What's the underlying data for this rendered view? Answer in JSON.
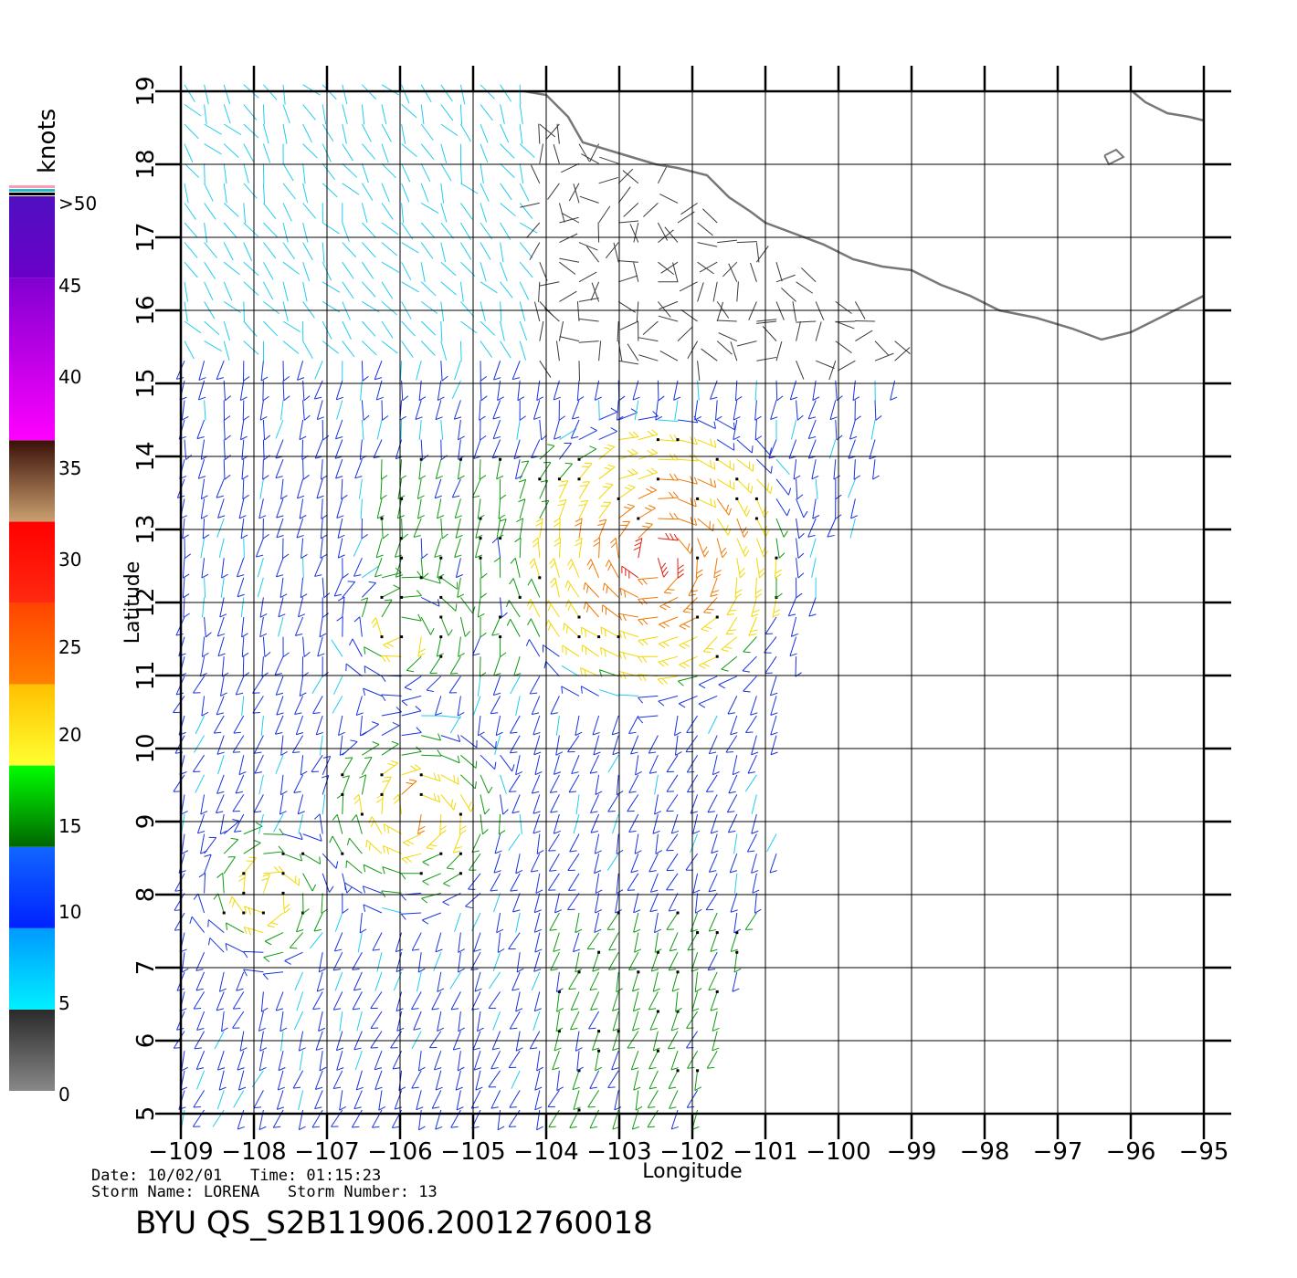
{
  "map": {
    "xaxis": {
      "label": "Longitude",
      "range": [
        -109,
        -95
      ],
      "ticks": [
        -109,
        -108,
        -107,
        -106,
        -105,
        -104,
        -103,
        -102,
        -101,
        -100,
        -99,
        -98,
        -97,
        -96,
        -95
      ],
      "tick_labels": [
        "−109",
        "−108",
        "−107",
        "−106",
        "−105",
        "−104",
        "−103",
        "−102",
        "−101",
        "−100",
        "−99",
        "−98",
        "−97",
        "−96",
        "−95"
      ]
    },
    "yaxis": {
      "label": "Latitude",
      "range": [
        5,
        19
      ],
      "ticks": [
        5,
        6,
        7,
        8,
        9,
        10,
        11,
        12,
        13,
        14,
        15,
        16,
        17,
        18,
        19
      ],
      "tick_labels": [
        "5",
        "6",
        "7",
        "8",
        "9",
        "10",
        "11",
        "12",
        "13",
        "14",
        "15",
        "16",
        "17",
        "18",
        "19"
      ]
    },
    "grid": true,
    "coastline_color": "#777777",
    "swath": {
      "lon_min": -109,
      "lat_min": 5,
      "lat_max": 19
    }
  },
  "legend": {
    "title": "knots",
    "labels": [
      ">50",
      "45",
      "40",
      "35",
      "30",
      "25",
      "20",
      "15",
      "10",
      "5",
      "0"
    ],
    "bins": [
      {
        "min": 0,
        "max": 5,
        "color": "#3a3a3a"
      },
      {
        "min": 5,
        "max": 10,
        "color": "#22ccee"
      },
      {
        "min": 10,
        "max": 15,
        "color": "#1a33dd"
      },
      {
        "min": 15,
        "max": 20,
        "color": "#119911"
      },
      {
        "min": 20,
        "max": 25,
        "color": "#f2d800"
      },
      {
        "min": 25,
        "max": 30,
        "color": "#f07800"
      },
      {
        "min": 30,
        "max": 35,
        "color": "#e02010"
      },
      {
        "min": 35,
        "max": 40,
        "color": "#7a3a20"
      },
      {
        "min": 40,
        "max": 50,
        "color": "#c010d0"
      },
      {
        "min": 50,
        "max": 60,
        "color": "#6a10c8"
      }
    ]
  },
  "footer": {
    "line1": "Date: 10/02/01   Time: 01:15:23",
    "line2": "Storm Name: LORENA   Storm Number: 13",
    "title": "BYU QS_S2B11906.20012760018"
  }
}
